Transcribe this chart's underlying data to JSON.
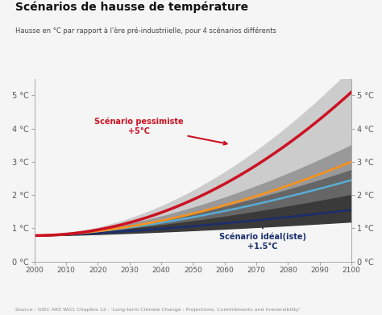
{
  "title": "Scénarios de hausse de température",
  "subtitle": "Hausse en °C par rapport à l'ère pré-industriielle, pour 4 scénarios différents",
  "source": "Source : GIEC AR5 WG1 Chapitre 12 : 'Long-term Climate Change : Projections, Commitments and Irreversibility'",
  "x_start": 2000,
  "x_end": 2100,
  "y_min": 0,
  "y_max": 5.5,
  "yticks": [
    0,
    1,
    2,
    3,
    4,
    5
  ],
  "ytick_labels": [
    "0 °C",
    "1 °C",
    "2 °C",
    "3 °C",
    "4 °C",
    "5 °C"
  ],
  "xticks": [
    2000,
    2010,
    2020,
    2030,
    2040,
    2050,
    2060,
    2070,
    2080,
    2090,
    2100
  ],
  "background_color": "#f5f5f5",
  "annotation_pessimiste": "Scénario pessimiste\n+5°C",
  "annotation_ideal": "Scénario idéal(iste)\n+1.5°C",
  "red_line_color": "#cc1122",
  "orange_line_color": "#f5921e",
  "blue_line_color": "#5bacd4",
  "navy_line_color": "#1a2e6e",
  "title_color": "#111111",
  "subtitle_color": "#444444"
}
